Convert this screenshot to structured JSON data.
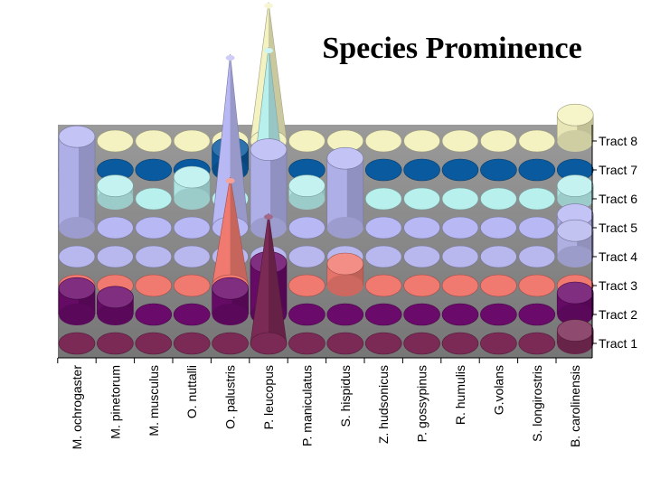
{
  "chart_data": {
    "type": "3d-column",
    "shape": "cylinder/cone",
    "title": "Species Prominence",
    "categories": [
      "M. ochrogaster",
      "M. pinetorum",
      "M. musculus",
      "O. nuttalli",
      "O. palustris",
      "P. leucopus",
      "P. maniculatus",
      "S. hispidus",
      "Z. hudsonicus",
      "P. gossypinus",
      "R. humulis",
      "G.volans",
      "S. longirostris",
      "B. carolinensis"
    ],
    "series": [
      {
        "name": "Tract 1",
        "color": "#7a2a55",
        "values": [
          0,
          0,
          0,
          0,
          0,
          3,
          0,
          0,
          0,
          0,
          0,
          0,
          0,
          0.3
        ]
      },
      {
        "name": "Tract 2",
        "color": "#6a0a6a",
        "values": [
          0.6,
          0.4,
          0,
          0,
          0.6,
          1.2,
          0,
          0,
          0,
          0,
          0,
          0,
          0,
          0.5
        ]
      },
      {
        "name": "Tract 3",
        "color": "#f07a70",
        "values": [
          0,
          0,
          0,
          0,
          2.5,
          0,
          0,
          0.5,
          0,
          0,
          0,
          0,
          0,
          0
        ]
      },
      {
        "name": "Tract 4",
        "color": "#b8b8ee",
        "values": [
          0,
          0,
          0,
          0,
          0,
          0,
          0,
          0,
          0,
          0,
          0,
          0,
          0,
          0.6
        ]
      },
      {
        "name": "Tract 5",
        "color": "#b8b8f4",
        "values": [
          2.1,
          0,
          0,
          0,
          4.0,
          1.8,
          0,
          1.6,
          0,
          0,
          0,
          0,
          0,
          0.3
        ]
      },
      {
        "name": "Tract 6",
        "color": "#b8f0ee",
        "values": [
          0,
          0.3,
          0,
          0.5,
          0,
          3.5,
          0.3,
          0,
          0,
          0,
          0,
          0,
          0,
          0.3
        ]
      },
      {
        "name": "Tract 7",
        "color": "#0a5aa0",
        "values": [
          0,
          0,
          0,
          0,
          0.5,
          0,
          0,
          0,
          0,
          0,
          0,
          0,
          0,
          0
        ]
      },
      {
        "name": "Tract 8",
        "color": "#f4f2c0",
        "values": [
          0,
          0,
          0,
          0,
          0,
          3.2,
          0,
          0,
          0,
          0,
          0,
          0,
          0,
          0.6
        ]
      }
    ],
    "grid": false,
    "legend": "none"
  }
}
